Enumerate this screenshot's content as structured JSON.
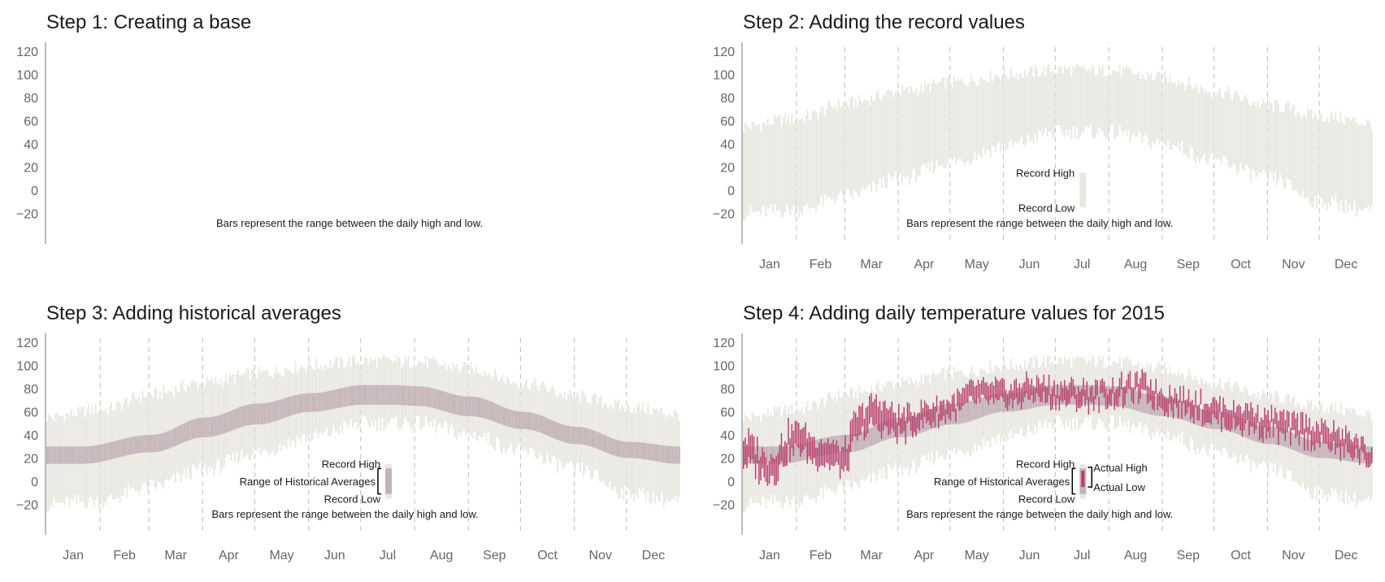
{
  "colors": {
    "record_band": "#e9e7e1",
    "historical_band": "#c4b4b8",
    "actual_bar": "#b73d6b",
    "axis_line": "#bbbbbb",
    "month_divider": "#bdbdbd",
    "tick_text": "#666666",
    "annotation_text": "#1a1a1a"
  },
  "panels": [
    {
      "title": "Step 1: Creating a base",
      "show_record": false,
      "show_historical": false,
      "show_actual": false,
      "show_months": false
    },
    {
      "title": "Step 2: Adding the record values",
      "show_record": true,
      "show_historical": false,
      "show_actual": false,
      "show_months": true
    },
    {
      "title": "Step 3: Adding historical averages",
      "show_record": true,
      "show_historical": true,
      "show_actual": false,
      "show_months": true
    },
    {
      "title": "Step 4: Adding daily temperature values for 2015",
      "show_record": true,
      "show_historical": true,
      "show_actual": true,
      "show_months": true
    }
  ],
  "legend_text": {
    "record_high": "Record High",
    "record_low": "Record Low",
    "historical": "Range of Historical Averages",
    "actual_high": "Actual High",
    "actual_low": "Actual Low",
    "caption": "Bars represent the range between the daily high and low."
  },
  "chart_data": {
    "type": "bar",
    "description_note": "",
    "y_ticks": [
      120,
      100,
      80,
      60,
      40,
      20,
      0,
      -20
    ],
    "ylim": [
      -30,
      125
    ],
    "days": 365,
    "months": [
      "Jan",
      "Feb",
      "Mar",
      "Apr",
      "May",
      "Jun",
      "Jul",
      "Aug",
      "Sep",
      "Oct",
      "Nov",
      "Dec"
    ],
    "month_start_days": [
      0,
      31,
      59,
      90,
      120,
      151,
      181,
      212,
      243,
      273,
      304,
      334
    ],
    "month_divider_days": [
      31,
      59,
      90,
      120,
      151,
      181,
      212,
      243,
      273,
      304,
      334
    ],
    "series": [
      {
        "name": "Record High",
        "anchors": [
          [
            0,
            55
          ],
          [
            31,
            62
          ],
          [
            60,
            75
          ],
          [
            91,
            85
          ],
          [
            121,
            93
          ],
          [
            152,
            100
          ],
          [
            182,
            104
          ],
          [
            213,
            103
          ],
          [
            244,
            97
          ],
          [
            274,
            85
          ],
          [
            305,
            73
          ],
          [
            335,
            64
          ],
          [
            364,
            58
          ]
        ]
      },
      {
        "name": "Record Low",
        "anchors": [
          [
            0,
            -20
          ],
          [
            31,
            -17
          ],
          [
            60,
            -5
          ],
          [
            91,
            10
          ],
          [
            121,
            25
          ],
          [
            152,
            38
          ],
          [
            182,
            50
          ],
          [
            213,
            50
          ],
          [
            244,
            40
          ],
          [
            274,
            25
          ],
          [
            305,
            10
          ],
          [
            335,
            -10
          ],
          [
            364,
            -18
          ]
        ]
      },
      {
        "name": "Historical High",
        "anchors": [
          [
            0,
            30
          ],
          [
            20,
            30
          ],
          [
            60,
            40
          ],
          [
            91,
            55
          ],
          [
            121,
            67
          ],
          [
            152,
            76
          ],
          [
            182,
            83
          ],
          [
            200,
            83
          ],
          [
            213,
            82
          ],
          [
            244,
            73
          ],
          [
            274,
            60
          ],
          [
            305,
            47
          ],
          [
            335,
            34
          ],
          [
            364,
            30
          ]
        ]
      },
      {
        "name": "Historical Low",
        "anchors": [
          [
            0,
            15
          ],
          [
            20,
            15
          ],
          [
            60,
            25
          ],
          [
            91,
            38
          ],
          [
            121,
            49
          ],
          [
            152,
            60
          ],
          [
            182,
            66
          ],
          [
            200,
            66
          ],
          [
            213,
            65
          ],
          [
            244,
            56
          ],
          [
            274,
            45
          ],
          [
            305,
            32
          ],
          [
            335,
            20
          ],
          [
            364,
            15
          ]
        ]
      },
      {
        "name": "Actual High",
        "anchors": [
          [
            0,
            40
          ],
          [
            15,
            25
          ],
          [
            30,
            50
          ],
          [
            45,
            38
          ],
          [
            58,
            30
          ],
          [
            66,
            60
          ],
          [
            75,
            72
          ],
          [
            91,
            60
          ],
          [
            110,
            68
          ],
          [
            121,
            72
          ],
          [
            135,
            85
          ],
          [
            152,
            84
          ],
          [
            170,
            88
          ],
          [
            182,
            84
          ],
          [
            200,
            82
          ],
          [
            213,
            85
          ],
          [
            230,
            90
          ],
          [
            244,
            80
          ],
          [
            260,
            75
          ],
          [
            274,
            70
          ],
          [
            290,
            65
          ],
          [
            305,
            60
          ],
          [
            320,
            55
          ],
          [
            335,
            50
          ],
          [
            350,
            42
          ],
          [
            364,
            30
          ]
        ]
      },
      {
        "name": "Actual Low",
        "anchors": [
          [
            0,
            15
          ],
          [
            15,
            0
          ],
          [
            30,
            25
          ],
          [
            45,
            15
          ],
          [
            58,
            5
          ],
          [
            66,
            35
          ],
          [
            75,
            45
          ],
          [
            91,
            38
          ],
          [
            110,
            50
          ],
          [
            121,
            55
          ],
          [
            135,
            66
          ],
          [
            152,
            65
          ],
          [
            170,
            70
          ],
          [
            182,
            66
          ],
          [
            200,
            65
          ],
          [
            213,
            68
          ],
          [
            230,
            72
          ],
          [
            244,
            62
          ],
          [
            260,
            58
          ],
          [
            274,
            50
          ],
          [
            290,
            45
          ],
          [
            305,
            40
          ],
          [
            320,
            35
          ],
          [
            335,
            30
          ],
          [
            350,
            22
          ],
          [
            364,
            15
          ]
        ]
      }
    ]
  }
}
